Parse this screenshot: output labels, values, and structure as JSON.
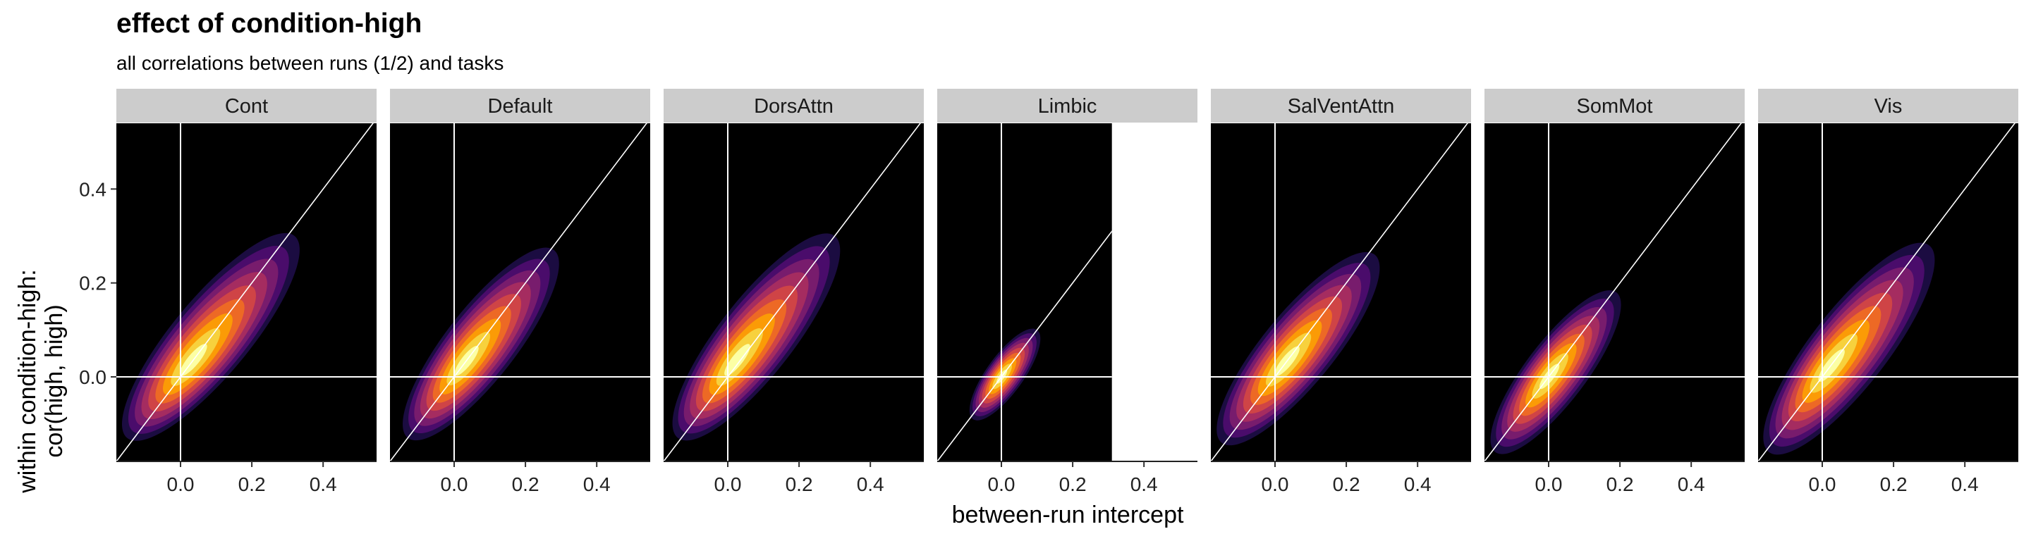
{
  "chart_data": {
    "type": "density2d-facets",
    "title": "effect of condition-high",
    "subtitle": "all correlations between runs (1/2) and tasks",
    "xlabel": "between-run intercept",
    "ylabel_lines": [
      "within condition-high:",
      "cor(high, high)"
    ],
    "xlim": [
      -0.18,
      0.55
    ],
    "ylim": [
      -0.18,
      0.54
    ],
    "x_ticks": [
      0.0,
      0.2,
      0.4
    ],
    "x_tick_labels": [
      "0.0",
      "0.2",
      "0.4"
    ],
    "y_ticks": [
      0.0,
      0.2,
      0.4
    ],
    "y_tick_labels": [
      "0.0",
      "0.2",
      "0.4"
    ],
    "reference_line": "identity",
    "reference_hlines": [
      0
    ],
    "reference_vlines": [
      0
    ],
    "colormap": [
      "#000004",
      "#1b0c41",
      "#4a0c6b",
      "#781c6d",
      "#a52c60",
      "#cf4446",
      "#ed6925",
      "#fb9b06",
      "#f7d13d",
      "#fcffa4"
    ],
    "panel_background": "#000000",
    "strip_background": "#cccccc",
    "panels": [
      {
        "label": "Cont",
        "center": [
          0.03,
          0.03
        ],
        "x_range": [
          -0.15,
          0.32
        ],
        "y_range": [
          -0.13,
          0.3
        ],
        "data_xmax": 0.55
      },
      {
        "label": "Default",
        "center": [
          0.03,
          0.03
        ],
        "x_range": [
          -0.13,
          0.28
        ],
        "y_range": [
          -0.13,
          0.27
        ],
        "data_xmax": 0.55
      },
      {
        "label": "DorsAttn",
        "center": [
          0.02,
          0.03
        ],
        "x_range": [
          -0.14,
          0.3
        ],
        "y_range": [
          -0.13,
          0.3
        ],
        "data_xmax": 0.55
      },
      {
        "label": "Limbic",
        "center": [
          0.0,
          0.0
        ],
        "x_range": [
          -0.08,
          0.1
        ],
        "y_range": [
          -0.09,
          0.1
        ],
        "data_xmax": 0.31
      },
      {
        "label": "SalVentAttn",
        "center": [
          0.03,
          0.03
        ],
        "x_range": [
          -0.15,
          0.28
        ],
        "y_range": [
          -0.14,
          0.26
        ],
        "data_xmax": 0.55
      },
      {
        "label": "SomMot",
        "center": [
          0.0,
          0.0
        ],
        "x_range": [
          -0.15,
          0.19
        ],
        "y_range": [
          -0.16,
          0.18
        ],
        "data_xmax": 0.55
      },
      {
        "label": "Vis",
        "center": [
          0.02,
          0.02
        ],
        "x_range": [
          -0.15,
          0.3
        ],
        "y_range": [
          -0.16,
          0.28
        ],
        "data_xmax": 0.55
      }
    ]
  }
}
